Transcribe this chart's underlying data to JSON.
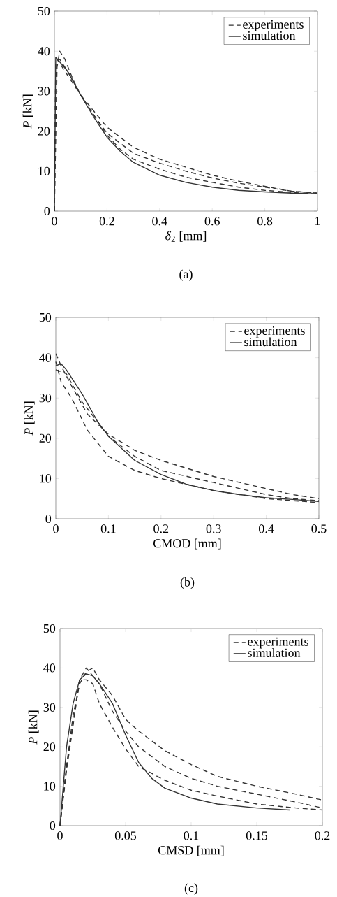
{
  "chart_data": [
    {
      "type": "line",
      "xlabel": "*δ*$_{2}$ [mm]",
      "ylabel": "*P* [kN]",
      "annotations": [
        "(a)"
      ],
      "xlim": [
        0,
        1
      ],
      "ylim": [
        0,
        50
      ],
      "xticks": [
        0,
        0.2,
        0.4,
        0.6,
        0.8,
        1
      ],
      "yticks": [
        0,
        10,
        20,
        30,
        40,
        50
      ],
      "legend": "top right",
      "series": [
        {
          "name": "experiments",
          "color": "#333333",
          "line_style": "dashed",
          "x": [
            0,
            0.01,
            0.02,
            0.04,
            0.07,
            0.1,
            0.15,
            0.2,
            0.3,
            0.4,
            0.5,
            0.6,
            0.7,
            0.8,
            0.9,
            1
          ],
          "values": [
            0,
            36,
            40,
            38,
            33,
            29,
            25,
            21,
            16,
            13,
            11,
            9,
            7.5,
            6.2,
            5,
            4.5
          ]
        },
        {
          "color": "#333333",
          "line_style": "dashed",
          "x": [
            0,
            0.005,
            0.01,
            0.05,
            0.1,
            0.15,
            0.2,
            0.3,
            0.4,
            0.5,
            0.6,
            0.7,
            0.8,
            0.9,
            1
          ],
          "values": [
            0,
            33,
            38,
            34,
            29,
            24,
            19.5,
            14.5,
            12,
            10,
            8.3,
            7,
            6,
            5,
            4.5
          ]
        },
        {
          "color": "#333333",
          "line_style": "dashed",
          "x": [
            0,
            0.005,
            0.02,
            0.05,
            0.1,
            0.15,
            0.2,
            0.25,
            0.3,
            0.4,
            0.5,
            0.6,
            0.7,
            0.8,
            0.9,
            1
          ],
          "values": [
            0,
            37,
            38,
            35,
            29,
            24,
            19,
            15.5,
            13,
            10.5,
            8.5,
            7.2,
            6,
            5.2,
            4.7,
            4.3
          ]
        },
        {
          "name": "simulation",
          "color": "#333333",
          "line_style": "solid",
          "x": [
            0,
            0.005,
            0.05,
            0.1,
            0.15,
            0.2,
            0.25,
            0.3,
            0.4,
            0.5,
            0.6,
            0.7,
            0.8,
            0.9,
            1
          ],
          "values": [
            0,
            38.5,
            35,
            29,
            23.5,
            18.5,
            15,
            12.2,
            9,
            7.2,
            6,
            5.2,
            4.8,
            4.5,
            4.3
          ]
        }
      ]
    },
    {
      "type": "line",
      "xlabel": "CMOD [mm]",
      "ylabel": "*P* [kN]",
      "annotations": [
        "(b)"
      ],
      "xlim": [
        0,
        0.5
      ],
      "ylim": [
        0,
        50
      ],
      "xticks": [
        0,
        0.1,
        0.2,
        0.3,
        0.4,
        0.5
      ],
      "yticks": [
        0,
        10,
        20,
        30,
        40,
        50
      ],
      "legend": "top right",
      "series": [
        {
          "name": "experiments",
          "color": "#333333",
          "line_style": "dashed",
          "x": [
            0,
            0.01,
            0.03,
            0.06,
            0.1,
            0.15,
            0.2,
            0.25,
            0.3,
            0.35,
            0.4,
            0.45,
            0.5
          ],
          "values": [
            41,
            38,
            33,
            26,
            21,
            17,
            14.5,
            12.5,
            10.5,
            9,
            7.5,
            6,
            5
          ]
        },
        {
          "color": "#333333",
          "line_style": "dashed",
          "x": [
            0,
            0.02,
            0.05,
            0.08,
            0.1,
            0.15,
            0.2,
            0.25,
            0.3,
            0.35,
            0.4,
            0.45,
            0.5
          ],
          "values": [
            37,
            36,
            29,
            24,
            20.5,
            15.5,
            12,
            10.5,
            9,
            7.5,
            6,
            5,
            4.5
          ]
        },
        {
          "color": "#333333",
          "line_style": "dashed",
          "x": [
            0,
            0.01,
            0.03,
            0.06,
            0.1,
            0.15,
            0.2,
            0.25,
            0.3,
            0.35,
            0.4,
            0.45,
            0.5
          ],
          "values": [
            39,
            34,
            30,
            22,
            15.5,
            12,
            10,
            8.5,
            7,
            6,
            5,
            4.5,
            4
          ]
        },
        {
          "name": "simulation",
          "color": "#333333",
          "line_style": "solid",
          "x": [
            0,
            0.01,
            0.02,
            0.05,
            0.08,
            0.1,
            0.15,
            0.2,
            0.25,
            0.3,
            0.35,
            0.4,
            0.45,
            0.5
          ],
          "values": [
            38,
            38.5,
            37,
            31,
            24,
            20.5,
            14.5,
            11,
            8.5,
            7,
            6,
            5.2,
            4.8,
            4.3
          ]
        }
      ]
    },
    {
      "type": "line",
      "xlabel": "CMSD [mm]",
      "ylabel": "*P* [kN]",
      "annotations": [
        "(c)"
      ],
      "xlim": [
        0,
        0.2
      ],
      "ylim": [
        0,
        50
      ],
      "xticks": [
        0,
        0.05,
        0.1,
        0.15,
        0.2
      ],
      "yticks": [
        0,
        10,
        20,
        30,
        40,
        50
      ],
      "legend": "top right",
      "series": [
        {
          "name": "experiments",
          "color": "#333333",
          "line_style": "dashed",
          "x": [
            0,
            0.005,
            0.01,
            0.015,
            0.02,
            0.025,
            0.03,
            0.04,
            0.05,
            0.06,
            0.08,
            0.1,
            0.12,
            0.15,
            0.18,
            0.2
          ],
          "values": [
            0,
            15,
            28,
            36,
            39,
            40,
            37,
            33,
            27,
            24,
            19,
            15.5,
            12.5,
            10,
            8,
            6.5
          ]
        },
        {
          "color": "#333333",
          "line_style": "dashed",
          "x": [
            0,
            0.005,
            0.015,
            0.02,
            0.03,
            0.04,
            0.05,
            0.06,
            0.08,
            0.1,
            0.12,
            0.15,
            0.18,
            0.2
          ],
          "values": [
            0,
            15,
            37,
            40,
            36,
            29,
            24,
            20,
            15,
            12,
            10,
            8,
            6,
            4.5
          ]
        },
        {
          "color": "#333333",
          "line_style": "dashed",
          "x": [
            0,
            0.005,
            0.015,
            0.02,
            0.025,
            0.03,
            0.04,
            0.05,
            0.06,
            0.08,
            0.1,
            0.12,
            0.15,
            0.18,
            0.2
          ],
          "values": [
            0,
            14,
            37,
            37,
            36,
            31,
            25,
            19.5,
            15,
            11.5,
            9,
            7.5,
            5.5,
            4.5,
            4
          ]
        },
        {
          "name": "simulation",
          "color": "#333333",
          "line_style": "solid",
          "x": [
            0,
            0.005,
            0.01,
            0.015,
            0.02,
            0.025,
            0.03,
            0.04,
            0.05,
            0.06,
            0.07,
            0.08,
            0.1,
            0.12,
            0.15,
            0.175
          ],
          "values": [
            0,
            20,
            31,
            37,
            38.5,
            38,
            36,
            31,
            23,
            16,
            12,
            9.5,
            7,
            5.5,
            4.5,
            4
          ]
        }
      ]
    }
  ]
}
